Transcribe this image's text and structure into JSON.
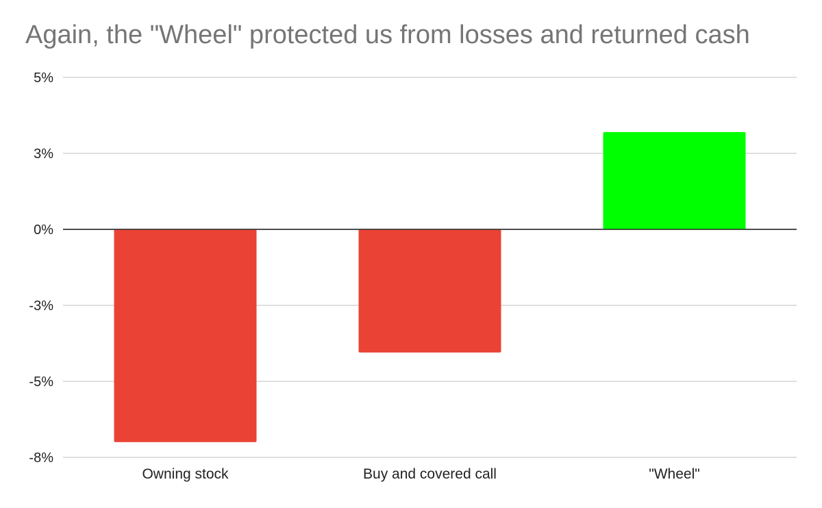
{
  "chart_data": {
    "type": "bar",
    "title": "Again, the \"Wheel\" protected us from losses and returned cash",
    "xlabel": "",
    "ylabel": "",
    "categories": [
      "Owning stock",
      "Buy and covered call",
      "\"Wheel\""
    ],
    "values": [
      -7.0,
      -4.05,
      3.2
    ],
    "ylim": [
      -7.5,
      5.0
    ],
    "y_ticks": [
      5.0,
      2.5,
      0,
      -2.5,
      -5.0,
      -7.5
    ],
    "y_tick_labels": [
      "5%",
      "3%",
      "0%",
      "-3%",
      "-5%",
      "-8%"
    ],
    "grid": true,
    "legend": "none",
    "colors": {
      "positive": "#00ff00",
      "negative": "#ea4335",
      "gridline": "#cccccc",
      "zero_line": "#333333",
      "title": "#757575",
      "labels": "#222222"
    }
  }
}
